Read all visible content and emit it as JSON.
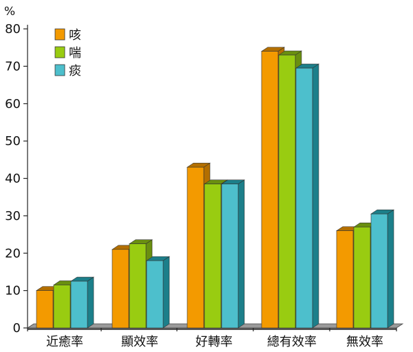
{
  "chart_data": {
    "type": "bar",
    "unit": "%",
    "categories": [
      "近癒率",
      "顯效率",
      "好轉率",
      "總有效率",
      "無效率"
    ],
    "series": [
      {
        "name": "咳",
        "values": [
          10,
          21,
          43,
          74,
          26
        ],
        "color": "#f39a00",
        "dark": "#b36f00"
      },
      {
        "name": "喘",
        "values": [
          11.5,
          22.5,
          38.5,
          73,
          27
        ],
        "color": "#99cc11",
        "dark": "#6a8f10"
      },
      {
        "name": "痰",
        "values": [
          12.5,
          18,
          38.5,
          69.5,
          30.5
        ],
        "color": "#4dbfcc",
        "dark": "#1c7f8a"
      }
    ],
    "yticks": [
      0,
      10,
      20,
      30,
      40,
      50,
      60,
      70,
      80
    ],
    "ylim": [
      0,
      80
    ],
    "legend_position": "top-left",
    "grid": false
  }
}
